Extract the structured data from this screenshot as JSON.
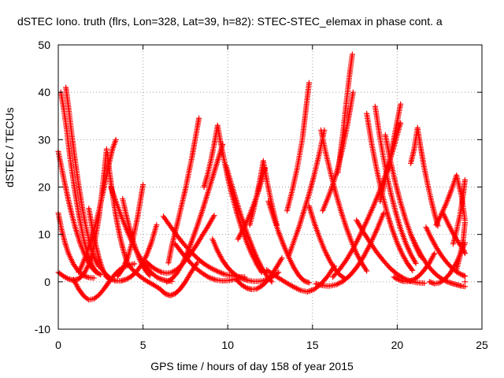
{
  "chart_data": {
    "type": "scatter",
    "title": "dSTEC Iono. truth (flrs, Lon=328, Lat=39, h=82): STEC-STEC_elemax in phase cont. a",
    "xlabel": "GPS time / hours of day 158 of year 2015",
    "ylabel": "dSTEC  / TECUs",
    "xlim": [
      0,
      25
    ],
    "ylim": [
      -10,
      50
    ],
    "xticks": [
      0,
      5,
      10,
      15,
      20,
      25
    ],
    "yticks": [
      -10,
      0,
      10,
      20,
      30,
      40,
      50
    ],
    "grid": true,
    "marker": "plus",
    "color": "#ff0000",
    "series": [
      {
        "x": [
          0.0,
          0.3,
          0.6,
          0.9,
          1.2,
          1.5,
          1.8,
          2.1,
          2.4,
          2.7,
          2.85
        ],
        "y": [
          2,
          1.2,
          0.6,
          0.3,
          0.6,
          1.6,
          3.6,
          7.4,
          13.6,
          22.8,
          28
        ]
      },
      {
        "x": [
          0.0,
          0.2,
          0.4,
          0.6,
          0.8,
          1.0,
          1.3,
          1.6,
          1.9,
          2.2,
          2.5
        ],
        "y": [
          27.5,
          24,
          20.5,
          17.2,
          14.2,
          11.5,
          8,
          5.3,
          3.3,
          2.1,
          1.5
        ]
      },
      {
        "x": [
          0.0,
          0.2,
          0.4,
          0.6,
          0.9,
          1.2,
          1.5,
          1.8,
          2.1
        ],
        "y": [
          14.5,
          11,
          8.2,
          6,
          3.7,
          2.2,
          1.3,
          0.9,
          0.8
        ]
      },
      {
        "x": [
          0.15,
          0.3,
          0.5,
          0.7,
          0.9,
          1.1,
          1.3,
          1.5,
          1.7,
          1.9,
          2.1,
          2.3
        ],
        "y": [
          40,
          37,
          32,
          26,
          21,
          16.5,
          12.5,
          9,
          6.3,
          4.2,
          2.8,
          2
        ]
      },
      {
        "x": [
          0.45,
          0.6,
          0.8,
          1.0,
          1.2,
          1.4,
          1.6,
          1.8,
          2.0,
          2.2,
          2.4
        ],
        "y": [
          41,
          37,
          31,
          25.5,
          20.5,
          16,
          12.2,
          9,
          6.4,
          4.5,
          3.2
        ]
      },
      {
        "x": [
          0.9,
          1.2,
          1.5,
          1.8,
          2.1,
          2.4,
          2.7,
          3.0,
          3.3,
          3.6,
          3.9,
          4.2,
          4.5
        ],
        "y": [
          0.5,
          -1.5,
          -3,
          -3.8,
          -3.6,
          -2.8,
          -1.5,
          0,
          1.4,
          2.5,
          3.2,
          3.6,
          3.8
        ]
      },
      {
        "x": [
          1.8,
          2.0,
          2.2,
          2.4,
          2.6,
          2.8,
          3.0
        ],
        "y": [
          15.5,
          11.5,
          8,
          5,
          2.8,
          1.2,
          0.5
        ]
      },
      {
        "x": [
          1.2,
          1.4,
          1.6,
          1.8,
          2.0,
          2.2,
          2.4,
          2.6,
          2.8,
          3.0,
          3.2,
          3.4
        ],
        "y": [
          2,
          3.5,
          5.3,
          7.3,
          9.6,
          12.2,
          15,
          18.2,
          21.5,
          25,
          28,
          30
        ]
      },
      {
        "x": [
          2.5,
          2.8,
          3.1,
          3.4,
          3.7,
          4.0,
          4.3,
          4.6,
          4.9,
          5.2,
          5.5,
          5.8
        ],
        "y": [
          3,
          1.6,
          0.6,
          0.2,
          0.2,
          0.5,
          1.1,
          2.1,
          3.5,
          5.5,
          8.3,
          12
        ]
      },
      {
        "x": [
          2.9,
          3.05,
          3.2,
          3.35,
          3.5,
          3.65,
          3.8,
          3.95,
          4.1
        ],
        "y": [
          27,
          22.5,
          18.5,
          15,
          12,
          9.4,
          7.2,
          5.3,
          3.8
        ]
      },
      {
        "x": [
          3.1,
          3.4,
          3.7,
          4.0,
          4.3,
          4.6,
          4.9,
          5.2,
          5.5,
          5.8,
          6.1,
          6.4,
          6.7
        ],
        "y": [
          20,
          17,
          14,
          11.3,
          8.8,
          6.6,
          4.7,
          3.1,
          1.9,
          1,
          0.5,
          0.2,
          0.1
        ]
      },
      {
        "x": [
          3.5,
          3.8,
          4.1,
          4.4,
          4.7,
          5.0
        ],
        "y": [
          1.2,
          2.7,
          5.1,
          8.9,
          14,
          20.5
        ]
      },
      {
        "x": [
          3.8,
          4.0,
          4.2,
          4.4,
          4.6,
          4.8,
          5.0,
          5.2,
          5.4
        ],
        "y": [
          17.5,
          14.3,
          11.4,
          8.8,
          6.6,
          4.7,
          3.2,
          2.1,
          1.3
        ]
      },
      {
        "x": [
          4.0,
          4.4,
          4.8,
          5.2,
          5.6,
          6.0,
          6.3,
          6.6,
          6.9,
          7.2,
          7.5,
          7.8,
          8.2
        ],
        "y": [
          4,
          2.5,
          1.2,
          0.2,
          -0.6,
          -1.5,
          -2.5,
          -2.9,
          -2.5,
          -1.5,
          0,
          1.8,
          4
        ]
      },
      {
        "x": [
          5.2,
          5.5,
          5.8,
          6.1,
          6.4,
          6.7,
          7.0,
          7.3,
          7.6,
          7.9,
          8.2,
          8.5,
          8.8,
          9.2
        ],
        "y": [
          4.2,
          3.2,
          2.5,
          2,
          1.8,
          2,
          2.6,
          3.6,
          4.9,
          6.4,
          8,
          9.8,
          11.5,
          14
        ]
      },
      {
        "x": [
          6.4,
          6.7,
          7.0,
          7.3,
          7.6,
          7.9,
          8.2,
          8.5,
          8.8,
          9.1,
          9.4,
          9.7
        ],
        "y": [
          0,
          0.6,
          1.8,
          3.6,
          6,
          8.8,
          11.8,
          15,
          18.5,
          22,
          25.5,
          29
        ]
      },
      {
        "x": [
          6.2,
          6.6,
          7.0,
          7.4,
          7.8,
          8.2,
          8.6,
          9.0,
          9.4,
          9.8,
          10.2,
          10.6,
          11.0
        ],
        "y": [
          13.8,
          11.8,
          9.8,
          8,
          6.4,
          5,
          3.8,
          2.9,
          2.2,
          1.6,
          1.3,
          1.1,
          1
        ]
      },
      {
        "x": [
          6.5,
          6.7,
          6.9,
          7.1,
          7.3,
          7.5,
          7.7,
          7.9,
          8.1,
          8.3
        ],
        "y": [
          4,
          7.6,
          10.5,
          13.4,
          16.5,
          19.5,
          23,
          26.5,
          30.5,
          34.5
        ]
      },
      {
        "x": [
          6.9,
          7.3,
          7.7,
          8.1,
          8.5,
          8.9,
          9.3,
          9.7,
          10.1,
          10.5
        ],
        "y": [
          8,
          6.1,
          4.4,
          2.9,
          1.8,
          0.9,
          0.4,
          0.2,
          0.3,
          0.6
        ]
      },
      {
        "x": [
          8.6,
          8.8,
          9.0,
          9.2,
          9.4,
          9.6,
          9.8,
          10.0,
          10.2,
          10.5,
          10.8,
          11.1,
          11.4,
          11.7,
          12.0
        ],
        "y": [
          20,
          22.5,
          25.5,
          29,
          33,
          29,
          25.5,
          22,
          19,
          15,
          11.5,
          8.5,
          6,
          3.8,
          2
        ]
      },
      {
        "x": [
          9.1,
          9.4,
          9.7,
          10.0,
          10.3,
          10.6,
          10.9,
          11.2,
          11.5,
          11.8,
          12.1,
          12.4,
          12.7,
          13.0
        ],
        "y": [
          9,
          6.5,
          4.5,
          3,
          1.9,
          1.1,
          0.6,
          0.3,
          0.1,
          0.1,
          0.2,
          0.6,
          1.2,
          2
        ]
      },
      {
        "x": [
          9.9,
          10.2,
          10.5,
          10.8,
          11.1,
          11.4,
          11.7,
          12.0,
          12.3,
          12.6
        ],
        "y": [
          24.5,
          20.8,
          17.2,
          13.8,
          10.6,
          7.8,
          5.2,
          3,
          1.3,
          0
        ]
      },
      {
        "x": [
          10.5,
          10.8,
          11.1,
          11.4,
          11.7,
          12.0,
          12.3,
          12.6,
          12.9,
          13.2
        ],
        "y": [
          0.5,
          -0.6,
          -1.3,
          -1.6,
          -1.5,
          -0.9,
          0.1,
          1.5,
          3.2,
          5
        ]
      },
      {
        "x": [
          10.6,
          10.9,
          11.2,
          11.5,
          11.8,
          12.0,
          12.2
        ],
        "y": [
          9,
          11,
          13.3,
          16,
          19,
          21.5,
          24
        ]
      },
      {
        "x": [
          11.3,
          11.5,
          11.7,
          11.9,
          12.1,
          12.3,
          12.5,
          12.7,
          12.9
        ],
        "y": [
          12,
          14.8,
          18,
          21.5,
          25.5,
          21.5,
          18,
          14.8,
          12
        ]
      },
      {
        "x": [
          12.4,
          12.7,
          13.0,
          13.3,
          13.6,
          13.9,
          14.2,
          14.5,
          14.8
        ],
        "y": [
          17,
          13.6,
          10.5,
          7.7,
          5.2,
          3,
          1.3,
          0.2,
          -0.2
        ]
      },
      {
        "x": [
          12.3,
          12.7,
          13.1,
          13.5,
          13.9,
          14.3,
          14.7,
          15.1,
          15.5,
          15.9,
          16.3
        ],
        "y": [
          2.5,
          1.5,
          0.6,
          -0.3,
          -1.1,
          -1.8,
          -2.1,
          -1.6,
          -0.5,
          1.2,
          3.3
        ]
      },
      {
        "x": [
          13.5,
          13.8,
          14.1,
          14.4,
          14.6,
          14.8
        ],
        "y": [
          15,
          19.2,
          24,
          30,
          36,
          42
        ]
      },
      {
        "x": [
          13.6,
          13.9,
          14.2,
          14.5,
          14.8,
          15.1,
          15.4,
          15.7
        ],
        "y": [
          5.5,
          8.5,
          11.5,
          15,
          18.5,
          22.5,
          27,
          32
        ]
      },
      {
        "x": [
          14.8,
          15.1,
          15.4,
          15.7,
          16.0,
          16.3,
          16.6,
          16.9
        ],
        "y": [
          16,
          12.5,
          9.5,
          6.8,
          4.6,
          2.8,
          1.5,
          0.7
        ]
      },
      {
        "x": [
          15.2,
          15.6,
          16.0,
          16.4,
          16.8,
          17.2,
          17.6,
          18.0,
          18.4,
          18.8,
          19.2
        ],
        "y": [
          -0.4,
          -0.8,
          -0.9,
          -0.6,
          0.1,
          1.3,
          3,
          5.2,
          7.9,
          11,
          14.5
        ]
      },
      {
        "x": [
          15.5,
          15.8,
          16.1,
          16.4,
          16.7,
          17.0,
          17.3,
          17.6,
          17.9,
          18.2
        ],
        "y": [
          32,
          27,
          22.5,
          18.4,
          14.7,
          11.4,
          8.5,
          6,
          4,
          2.3
        ]
      },
      {
        "x": [
          15.6,
          15.9,
          16.2,
          16.5,
          16.8,
          17.0,
          17.2,
          17.4
        ],
        "y": [
          15,
          17.6,
          20.5,
          24,
          28.5,
          32,
          36,
          40
        ]
      },
      {
        "x": [
          16.2,
          16.6,
          17.0,
          17.4,
          17.8,
          18.2,
          18.6,
          19.0,
          19.4,
          19.8,
          20.2
        ],
        "y": [
          1,
          2.6,
          4.6,
          7,
          9.8,
          12.8,
          16,
          19.5,
          23.5,
          28.5,
          33.5
        ]
      },
      {
        "x": [
          16.5,
          16.8,
          17.0,
          17.2,
          17.35
        ],
        "y": [
          23,
          31.5,
          38,
          44,
          48
        ]
      },
      {
        "x": [
          17.6,
          18.0,
          18.4,
          18.8,
          19.2,
          19.6,
          20.0,
          20.4,
          20.8,
          21.2,
          21.6
        ],
        "y": [
          13,
          10.5,
          8.3,
          6.2,
          4.4,
          2.8,
          1.6,
          0.7,
          0.1,
          -0.2,
          -0.3
        ]
      },
      {
        "x": [
          18.2,
          18.5,
          18.8,
          19.1,
          19.4,
          19.7,
          20.0,
          20.3,
          20.6,
          20.9
        ],
        "y": [
          35.5,
          29,
          23.5,
          18.7,
          14.6,
          11.1,
          8.2,
          5.8,
          3.9,
          2.4
        ]
      },
      {
        "x": [
          18.7,
          19.0,
          19.3,
          19.6,
          19.9,
          20.2,
          20.5,
          20.8,
          21.1
        ],
        "y": [
          37,
          30,
          24,
          19,
          14.8,
          11.2,
          8.2,
          5.8,
          3.9
        ]
      },
      {
        "x": [
          19.0,
          19.3,
          19.6,
          19.9,
          20.2
        ],
        "y": [
          17,
          21.5,
          26.5,
          32,
          37.5
        ]
      },
      {
        "x": [
          19.3,
          19.6,
          19.9,
          20.2,
          20.5,
          20.8,
          21.1,
          21.4
        ],
        "y": [
          31,
          25.5,
          20.8,
          16.7,
          13.1,
          10,
          7.4,
          5.2
        ]
      },
      {
        "x": [
          19.8,
          20.1,
          20.4,
          20.7,
          21.0,
          21.3,
          21.6,
          21.9,
          22.2
        ],
        "y": [
          1,
          0.4,
          0.1,
          0.1,
          0.5,
          1.3,
          2.5,
          4,
          6
        ]
      },
      {
        "x": [
          20.8,
          21.1,
          21.4,
          21.7,
          22.0,
          22.3,
          22.6,
          22.9,
          23.2,
          23.5,
          23.8,
          24.0
        ],
        "y": [
          10,
          7.7,
          5.7,
          4,
          2.6,
          1.5,
          0.7,
          0.1,
          -0.3,
          -0.6,
          -0.9,
          -1
        ]
      },
      {
        "x": [
          20.8,
          21.0,
          21.2,
          21.4,
          21.6,
          21.8,
          22.0,
          22.2,
          22.4
        ],
        "y": [
          25,
          28,
          32.5,
          28,
          24,
          20.5,
          17.3,
          14.4,
          11.8
        ]
      },
      {
        "x": [
          21.7,
          22.0,
          22.3,
          22.6,
          22.9,
          23.2,
          23.5,
          23.8,
          24.0
        ],
        "y": [
          11.5,
          9.3,
          7.3,
          5.6,
          4.2,
          3,
          2.1,
          1.5,
          1.2
        ]
      },
      {
        "x": [
          21.9,
          22.2,
          22.5,
          22.8,
          23.1,
          23.4,
          23.7,
          24.0
        ],
        "y": [
          0,
          -0.4,
          -0.2,
          0.5,
          1.7,
          3.4,
          5.6,
          8.2
        ]
      },
      {
        "x": [
          22.3,
          22.6,
          22.9,
          23.2,
          23.5,
          23.8,
          24.0
        ],
        "y": [
          12,
          14.2,
          16.6,
          19.4,
          22.5,
          18,
          13
        ]
      },
      {
        "x": [
          22.7,
          23.0,
          23.3,
          23.6,
          23.9,
          24.0
        ],
        "y": [
          14.5,
          12.3,
          10.2,
          8.4,
          6.8,
          6
        ]
      },
      {
        "x": [
          23.3,
          23.5,
          23.7,
          23.9,
          24.0
        ],
        "y": [
          8,
          10.8,
          14,
          18.5,
          21.5
        ]
      },
      {
        "x": [
          23.5,
          23.7,
          23.9,
          24.0
        ],
        "y": [
          2.5,
          5.3,
          9,
          12.5
        ]
      },
      {
        "x": [
          24.0
        ],
        "y": [
          0
        ]
      }
    ]
  }
}
